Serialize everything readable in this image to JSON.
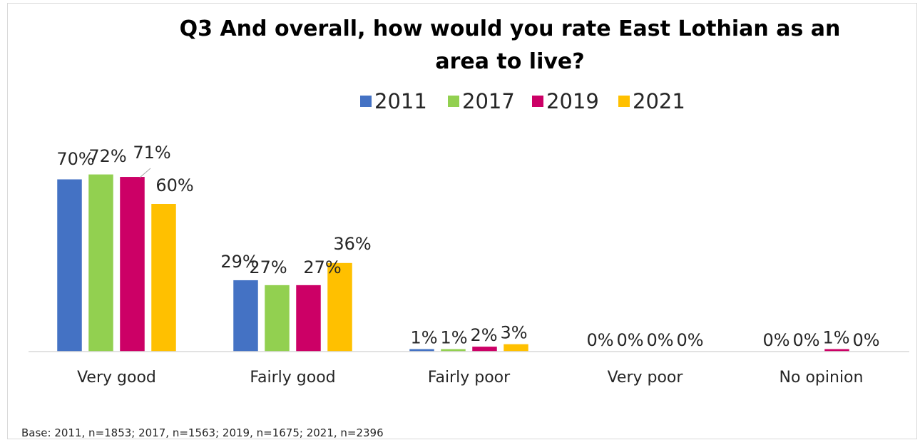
{
  "figure_caption": "",
  "chart_data": {
    "type": "bar",
    "title_lines": [
      "Q3 And overall, how would you rate East Lothian as an",
      "area to live?"
    ],
    "categories": [
      "Very good",
      "Fairly good",
      "Fairly poor",
      "Very poor",
      "No opinion"
    ],
    "series": [
      {
        "name": "2011",
        "color": "#4472c4",
        "values": [
          70,
          29,
          1,
          0,
          0
        ],
        "labels": [
          "70%",
          "29%",
          "1%",
          "0%",
          "0%"
        ]
      },
      {
        "name": "2017",
        "color": "#92d050",
        "values": [
          72,
          27,
          1,
          0,
          0
        ],
        "labels": [
          "72%",
          "27%",
          "1%",
          "0%",
          "0%"
        ]
      },
      {
        "name": "2019",
        "color": "#cc0066",
        "values": [
          71,
          27,
          2,
          0,
          1
        ],
        "labels": [
          "71%",
          "27%",
          "2%",
          "0%",
          "1%"
        ]
      },
      {
        "name": "2021",
        "color": "#ffc000",
        "values": [
          60,
          36,
          3,
          0,
          0
        ],
        "labels": [
          "60%",
          "36%",
          "3%",
          "0%",
          "0%"
        ]
      }
    ],
    "ylim": [
      0,
      100
    ],
    "legend_position": "top",
    "grid": false,
    "base_note": "Base: 2011, n=1853; 2017, n=1563; 2019, n=1675; 2021, n=2396"
  }
}
